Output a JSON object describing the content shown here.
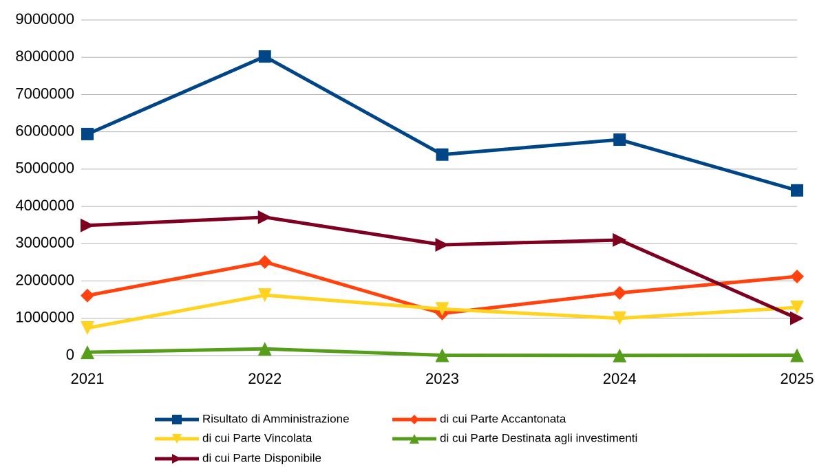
{
  "chart_data": {
    "type": "line",
    "categories": [
      "2021",
      "2022",
      "2023",
      "2024",
      "2025"
    ],
    "series": [
      {
        "name": "Risultato di Amministrazione",
        "color": "#004586",
        "marker": "square",
        "values": [
          5940000,
          8020000,
          5390000,
          5790000,
          4430000
        ]
      },
      {
        "name": "di cui Parte Accantonata",
        "color": "#ff420e",
        "marker": "diamond",
        "values": [
          1610000,
          2510000,
          1130000,
          1680000,
          2120000
        ]
      },
      {
        "name": "di cui Parte Vincolata",
        "color": "#ffd320",
        "marker": "triangle-down",
        "values": [
          740000,
          1620000,
          1250000,
          1000000,
          1290000
        ]
      },
      {
        "name": "di cui Parte Destinata agli investimenti",
        "color": "#579d1c",
        "marker": "triangle-up",
        "values": [
          90000,
          180000,
          10000,
          5000,
          10000
        ]
      },
      {
        "name": "di cui Parte Disponibile",
        "color": "#7e0021",
        "marker": "triangle-right",
        "values": [
          3490000,
          3710000,
          2970000,
          3100000,
          1000000
        ]
      }
    ],
    "ylim": [
      0,
      9000000
    ],
    "yticks": [
      0,
      1000000,
      2000000,
      3000000,
      4000000,
      5000000,
      6000000,
      7000000,
      8000000,
      9000000
    ],
    "grid": true,
    "legend": "bottom"
  }
}
